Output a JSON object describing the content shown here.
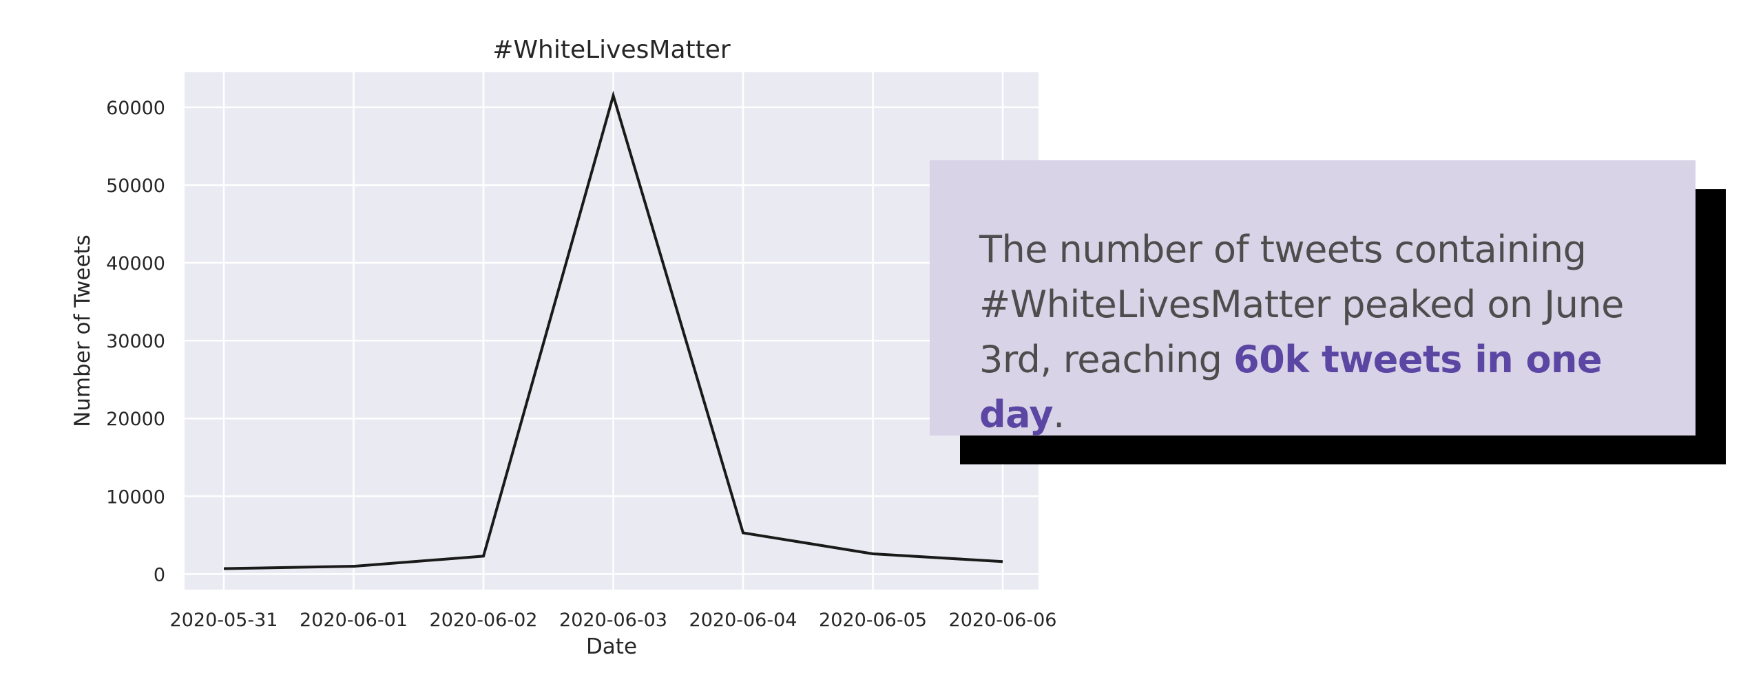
{
  "chart_data": {
    "type": "line",
    "title": "#WhiteLivesMatter",
    "xlabel": "Date",
    "ylabel": "Number of Tweets",
    "x": [
      "2020-05-31",
      "2020-06-01",
      "2020-06-02",
      "2020-06-03",
      "2020-06-04",
      "2020-06-05",
      "2020-06-06"
    ],
    "series": [
      {
        "values": [
          700,
          1000,
          2300,
          61500,
          5300,
          2600,
          1600
        ]
      }
    ],
    "yticks": [
      0,
      10000,
      20000,
      30000,
      40000,
      50000,
      60000
    ],
    "ylim": [
      -2000,
      64500
    ],
    "grid": true,
    "line_color": "#1a1a1a",
    "background_color": "#eaeaf2",
    "grid_color": "#ffffff"
  },
  "callout": {
    "text_before": "The number of tweets containing #WhiteLivesMatter peaked on June 3rd, reaching ",
    "highlight": "60k tweets in one day",
    "text_after": ".",
    "background_color": "#d8d3e6",
    "highlight_color": "#5b47a3"
  }
}
